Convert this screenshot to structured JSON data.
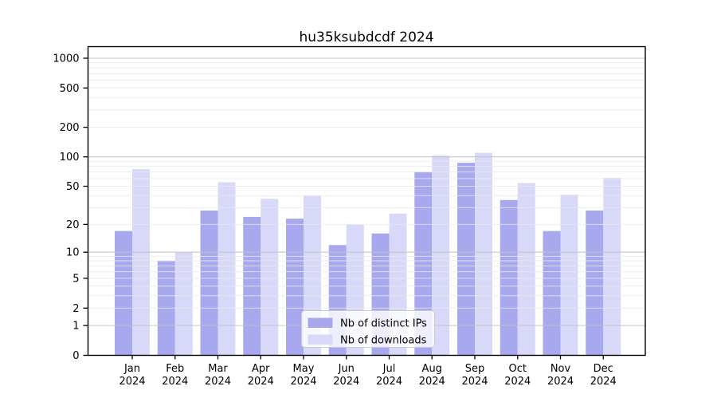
{
  "chart_data": {
    "type": "bar",
    "title": "hu35ksubdcdf 2024",
    "categories": [
      "Jan",
      "Feb",
      "Mar",
      "Apr",
      "May",
      "Jun",
      "Jul",
      "Aug",
      "Sep",
      "Oct",
      "Nov",
      "Dec"
    ],
    "year_label": "2024",
    "series": [
      {
        "name": "Nb of distinct IPs",
        "color": "#a8a8ee",
        "values": [
          17,
          8,
          28,
          24,
          23,
          12,
          16,
          70,
          87,
          36,
          17,
          28
        ]
      },
      {
        "name": "Nb of downloads",
        "color": "#d8d8f8",
        "values": [
          75,
          10,
          55,
          37,
          40,
          20,
          26,
          103,
          110,
          54,
          41,
          61
        ]
      }
    ],
    "y_ticks": [
      0,
      1,
      2,
      5,
      10,
      20,
      50,
      100,
      200,
      500,
      1000
    ],
    "y_scale": "log1p",
    "ylim": [
      0,
      1300
    ],
    "grid": true,
    "grid_major_color": "#c2c2c2",
    "grid_minor_color": "#eaeaea",
    "axis_color": "#000000",
    "legend_position": "lower center"
  }
}
